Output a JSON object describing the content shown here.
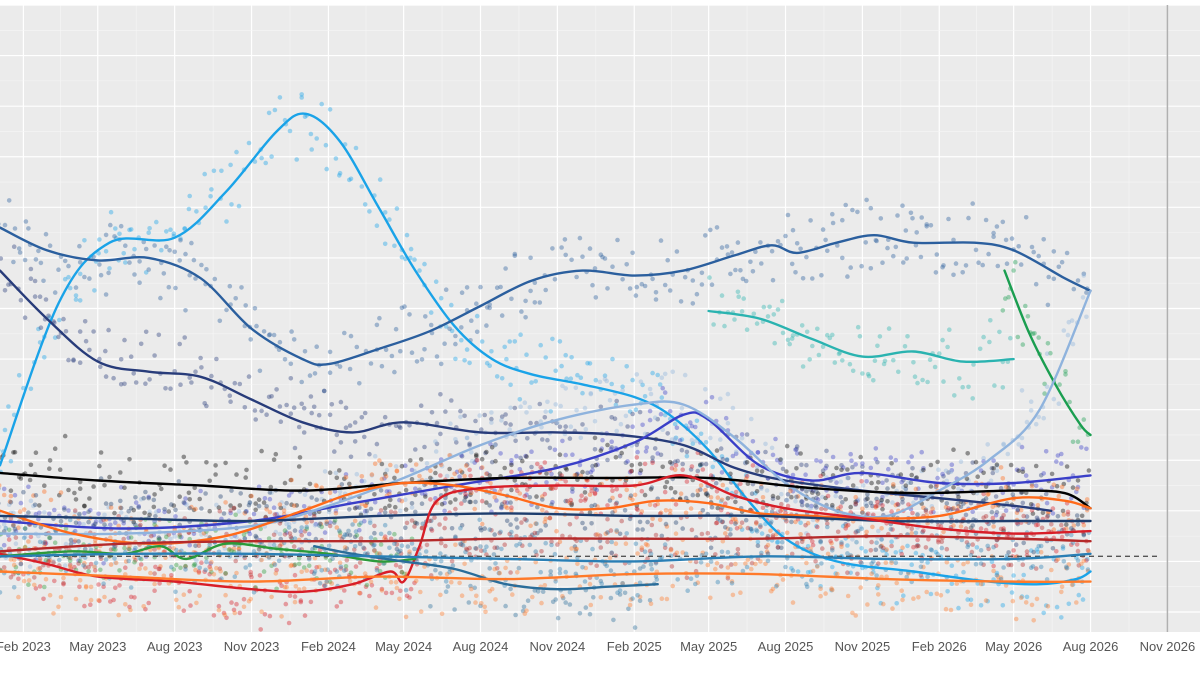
{
  "chart_data": {
    "type": "scatter",
    "x_axis": {
      "type": "date",
      "range": [
        "2023-01-04",
        "2026-12-10"
      ],
      "ticks": [
        {
          "date": "2023-02-01",
          "label": "Feb 2023"
        },
        {
          "date": "2023-05-01",
          "label": "May 2023"
        },
        {
          "date": "2023-08-01",
          "label": "Aug 2023"
        },
        {
          "date": "2023-11-01",
          "label": "Nov 2023"
        },
        {
          "date": "2024-02-01",
          "label": "Feb 2024"
        },
        {
          "date": "2024-05-01",
          "label": "May 2024"
        },
        {
          "date": "2024-08-01",
          "label": "Aug 2024"
        },
        {
          "date": "2024-11-01",
          "label": "Nov 2024"
        },
        {
          "date": "2025-02-01",
          "label": "Feb 2025"
        },
        {
          "date": "2025-05-01",
          "label": "May 2025"
        },
        {
          "date": "2025-08-01",
          "label": "Aug 2025"
        },
        {
          "date": "2025-11-01",
          "label": "Nov 2025"
        },
        {
          "date": "2026-02-01",
          "label": "Feb 2026"
        },
        {
          "date": "2026-05-01",
          "label": "May 2026"
        },
        {
          "date": "2026-08-01",
          "label": "Aug 2026"
        },
        {
          "date": "2026-11-01",
          "label": "Nov 2026"
        }
      ]
    },
    "y_axis": {
      "range": [
        0,
        24
      ],
      "tick_labels_shown": false
    },
    "reference_line": {
      "y": 2.2,
      "style": "dashed",
      "color": "#555555"
    },
    "vertical_line": {
      "date": "2026-11-01",
      "color": "#b0b0b0"
    },
    "grid": true,
    "background": "#ebebeb",
    "series": [
      {
        "color": "#1aa3e8",
        "points": [
          [
            "2023-01-04",
            5.8
          ],
          [
            "2023-03-15",
            12.2
          ],
          [
            "2023-05-15",
            14.6
          ],
          [
            "2023-08-01",
            14.8
          ],
          [
            "2023-10-01",
            16.6
          ],
          [
            "2023-12-01",
            19.0
          ],
          [
            "2024-01-05",
            19.7
          ],
          [
            "2024-02-15",
            18.6
          ],
          [
            "2024-04-01",
            16.0
          ],
          [
            "2024-05-15",
            13.5
          ],
          [
            "2024-07-01",
            11.3
          ],
          [
            "2024-08-15",
            10.0
          ],
          [
            "2024-10-01",
            9.4
          ],
          [
            "2024-12-01",
            9.0
          ],
          [
            "2025-02-01",
            8.5
          ],
          [
            "2025-03-15",
            7.8
          ],
          [
            "2025-05-01",
            6.4
          ],
          [
            "2025-06-15",
            4.5
          ],
          [
            "2025-08-01",
            2.9
          ],
          [
            "2025-10-01",
            2.0
          ],
          [
            "2026-01-01",
            1.6
          ],
          [
            "2026-04-01",
            1.2
          ],
          [
            "2026-06-01",
            1.1
          ],
          [
            "2026-07-15",
            1.3
          ],
          [
            "2026-08-01",
            1.6
          ]
        ]
      },
      {
        "color": "#2b5f9e",
        "points": [
          [
            "2023-01-04",
            15.2
          ],
          [
            "2023-03-01",
            14.3
          ],
          [
            "2023-05-01",
            13.9
          ],
          [
            "2023-07-01",
            14.0
          ],
          [
            "2023-09-01",
            13.2
          ],
          [
            "2023-11-01",
            11.2
          ],
          [
            "2024-01-01",
            10.0
          ],
          [
            "2024-02-01",
            9.8
          ],
          [
            "2024-04-01",
            10.4
          ],
          [
            "2024-06-01",
            11.1
          ],
          [
            "2024-08-01",
            12.1
          ],
          [
            "2024-10-01",
            13.1
          ],
          [
            "2024-12-01",
            13.5
          ],
          [
            "2025-02-01",
            13.3
          ],
          [
            "2025-04-01",
            13.5
          ],
          [
            "2025-06-01",
            14.1
          ],
          [
            "2025-07-15",
            14.5
          ],
          [
            "2025-08-15",
            14.2
          ],
          [
            "2025-10-01",
            14.6
          ],
          [
            "2025-11-15",
            14.9
          ],
          [
            "2026-01-01",
            14.6
          ],
          [
            "2026-03-15",
            14.6
          ],
          [
            "2026-05-01",
            14.3
          ],
          [
            "2026-07-01",
            13.2
          ],
          [
            "2026-08-01",
            12.7
          ]
        ]
      },
      {
        "color": "#283c7a",
        "points": [
          [
            "2023-01-04",
            13.5
          ],
          [
            "2023-03-01",
            11.6
          ],
          [
            "2023-05-01",
            9.9
          ],
          [
            "2023-07-01",
            9.5
          ],
          [
            "2023-09-01",
            9.3
          ],
          [
            "2023-11-01",
            8.4
          ],
          [
            "2024-01-01",
            7.5
          ],
          [
            "2024-03-01",
            7.1
          ],
          [
            "2024-05-01",
            7.5
          ],
          [
            "2024-08-01",
            7.1
          ],
          [
            "2024-11-01",
            7.1
          ],
          [
            "2025-01-15",
            7.0
          ],
          [
            "2025-04-01",
            6.6
          ],
          [
            "2025-06-01",
            5.7
          ],
          [
            "2025-08-01",
            5.2
          ],
          [
            "2025-11-01",
            4.8
          ],
          [
            "2026-02-01",
            4.5
          ],
          [
            "2026-05-01",
            4.2
          ],
          [
            "2026-06-15",
            4.0
          ]
        ]
      },
      {
        "color": "#2ab3b0",
        "points": [
          [
            "2025-05-01",
            11.9
          ],
          [
            "2025-07-01",
            11.6
          ],
          [
            "2025-09-01",
            10.8
          ],
          [
            "2025-11-01",
            10.1
          ],
          [
            "2026-01-01",
            10.3
          ],
          [
            "2026-03-01",
            9.9
          ],
          [
            "2026-05-01",
            10.0
          ]
        ]
      },
      {
        "color": "#1a9e50",
        "points": [
          [
            "2026-04-20",
            13.5
          ],
          [
            "2026-05-20",
            11.0
          ],
          [
            "2026-06-20",
            9.0
          ],
          [
            "2026-07-20",
            7.4
          ],
          [
            "2026-08-01",
            7.0
          ]
        ]
      },
      {
        "color": "#3a3fc8",
        "points": [
          [
            "2023-01-04",
            3.6
          ],
          [
            "2023-06-01",
            3.3
          ],
          [
            "2023-11-01",
            3.6
          ],
          [
            "2024-03-01",
            4.3
          ],
          [
            "2024-07-01",
            5.0
          ],
          [
            "2024-11-01",
            5.7
          ],
          [
            "2025-02-01",
            6.7
          ],
          [
            "2025-04-01",
            7.8
          ],
          [
            "2025-05-01",
            7.6
          ],
          [
            "2025-07-01",
            5.8
          ],
          [
            "2025-09-01",
            5.2
          ],
          [
            "2025-11-01",
            5.5
          ],
          [
            "2026-02-01",
            5.1
          ],
          [
            "2026-05-01",
            5.1
          ],
          [
            "2026-08-01",
            5.4
          ]
        ]
      },
      {
        "color": "#8fb3dd",
        "points": [
          [
            "2023-01-04",
            3.1
          ],
          [
            "2023-06-01",
            3.1
          ],
          [
            "2023-11-01",
            3.4
          ],
          [
            "2024-02-01",
            4.2
          ],
          [
            "2024-05-01",
            5.3
          ],
          [
            "2024-08-01",
            6.6
          ],
          [
            "2024-11-01",
            7.6
          ],
          [
            "2025-02-01",
            8.2
          ],
          [
            "2025-04-01",
            8.2
          ],
          [
            "2025-06-01",
            6.9
          ],
          [
            "2025-08-01",
            5.1
          ],
          [
            "2025-10-01",
            4.0
          ],
          [
            "2025-12-01",
            3.8
          ],
          [
            "2026-02-01",
            4.8
          ],
          [
            "2026-04-01",
            6.0
          ],
          [
            "2026-06-01",
            8.0
          ],
          [
            "2026-08-01",
            12.7
          ]
        ]
      },
      {
        "color": "#000000",
        "points": [
          [
            "2023-01-04",
            5.5
          ],
          [
            "2023-05-01",
            5.2
          ],
          [
            "2023-09-01",
            5.0
          ],
          [
            "2024-01-01",
            4.8
          ],
          [
            "2024-05-01",
            5.1
          ],
          [
            "2024-09-01",
            5.3
          ],
          [
            "2025-01-01",
            5.3
          ],
          [
            "2025-05-01",
            5.3
          ],
          [
            "2025-09-01",
            4.9
          ],
          [
            "2026-01-01",
            4.7
          ],
          [
            "2026-05-01",
            4.8
          ],
          [
            "2026-07-01",
            4.7
          ],
          [
            "2026-08-01",
            4.1
          ]
        ]
      },
      {
        "color": "#ff6a1a",
        "points": [
          [
            "2023-01-04",
            4.0
          ],
          [
            "2023-04-01",
            3.1
          ],
          [
            "2023-07-01",
            2.7
          ],
          [
            "2023-10-01",
            3.0
          ],
          [
            "2024-01-01",
            4.0
          ],
          [
            "2024-03-01",
            4.7
          ],
          [
            "2024-05-01",
            5.1
          ],
          [
            "2024-07-01",
            5.0
          ],
          [
            "2024-09-01",
            4.6
          ],
          [
            "2024-11-01",
            4.1
          ],
          [
            "2025-01-01",
            4.1
          ],
          [
            "2025-03-01",
            4.4
          ],
          [
            "2025-05-01",
            4.3
          ],
          [
            "2025-07-01",
            3.9
          ],
          [
            "2025-09-01",
            3.8
          ],
          [
            "2025-11-01",
            3.7
          ],
          [
            "2026-02-01",
            3.8
          ],
          [
            "2026-05-01",
            4.5
          ],
          [
            "2026-07-01",
            4.4
          ],
          [
            "2026-08-01",
            4.1
          ]
        ]
      },
      {
        "color": "#1e3e6e",
        "points": [
          [
            "2023-01-04",
            3.8
          ],
          [
            "2023-06-01",
            3.7
          ],
          [
            "2023-11-01",
            3.6
          ],
          [
            "2024-04-01",
            3.8
          ],
          [
            "2024-09-01",
            3.9
          ],
          [
            "2025-02-01",
            3.8
          ],
          [
            "2025-07-01",
            3.8
          ],
          [
            "2025-12-01",
            3.6
          ],
          [
            "2026-05-01",
            3.6
          ],
          [
            "2026-08-01",
            3.6
          ]
        ]
      },
      {
        "color": "#d81e28",
        "points": [
          [
            "2023-01-04",
            2.3
          ],
          [
            "2023-03-01",
            1.9
          ],
          [
            "2023-05-01",
            1.4
          ],
          [
            "2023-08-01",
            1.2
          ],
          [
            "2023-11-01",
            0.9
          ],
          [
            "2024-01-01",
            0.8
          ],
          [
            "2024-03-01",
            1.1
          ],
          [
            "2024-04-15",
            1.6
          ],
          [
            "2024-05-01",
            1.2
          ],
          [
            "2024-05-20",
            2.6
          ],
          [
            "2024-06-10",
            4.4
          ],
          [
            "2024-08-01",
            4.9
          ],
          [
            "2024-11-01",
            5.0
          ],
          [
            "2025-02-01",
            5.0
          ],
          [
            "2025-04-01",
            5.4
          ],
          [
            "2025-06-01",
            4.6
          ],
          [
            "2025-08-01",
            4.1
          ],
          [
            "2025-11-01",
            3.7
          ],
          [
            "2026-02-01",
            3.3
          ],
          [
            "2026-05-01",
            3.1
          ],
          [
            "2026-08-01",
            3.2
          ]
        ]
      },
      {
        "color": "#b52a2a",
        "points": [
          [
            "2023-01-04",
            2.4
          ],
          [
            "2023-06-01",
            2.7
          ],
          [
            "2023-11-01",
            2.8
          ],
          [
            "2024-04-01",
            2.8
          ],
          [
            "2024-09-01",
            2.9
          ],
          [
            "2025-02-01",
            2.9
          ],
          [
            "2025-07-01",
            2.9
          ],
          [
            "2025-12-01",
            3.0
          ],
          [
            "2026-05-01",
            2.9
          ],
          [
            "2026-08-01",
            2.8
          ]
        ]
      },
      {
        "color": "#2b9a3a",
        "points": [
          [
            "2023-01-04",
            2.2
          ],
          [
            "2023-04-01",
            2.4
          ],
          [
            "2023-06-01",
            2.3
          ],
          [
            "2023-07-15",
            2.6
          ],
          [
            "2023-08-15",
            2.1
          ],
          [
            "2023-10-01",
            2.7
          ],
          [
            "2023-12-01",
            2.5
          ],
          [
            "2024-02-01",
            2.3
          ],
          [
            "2024-04-01",
            2.0
          ],
          [
            "2024-05-15",
            2.1
          ]
        ]
      },
      {
        "color": "#2a6d9a",
        "points": [
          [
            "2024-01-15",
            2.6
          ],
          [
            "2024-03-01",
            2.3
          ],
          [
            "2024-05-01",
            2.0
          ],
          [
            "2024-07-01",
            1.7
          ],
          [
            "2024-09-01",
            1.1
          ],
          [
            "2024-11-01",
            0.9
          ],
          [
            "2025-01-01",
            1.0
          ],
          [
            "2025-03-01",
            1.1
          ]
        ]
      },
      {
        "color": "#ff7a2a",
        "points": [
          [
            "2023-01-04",
            1.6
          ],
          [
            "2023-06-01",
            1.4
          ],
          [
            "2023-11-01",
            1.2
          ],
          [
            "2024-04-01",
            1.4
          ],
          [
            "2024-09-01",
            1.3
          ],
          [
            "2025-02-01",
            1.5
          ],
          [
            "2025-07-01",
            1.5
          ],
          [
            "2025-12-01",
            1.3
          ],
          [
            "2026-05-01",
            1.2
          ],
          [
            "2026-08-01",
            1.2
          ]
        ]
      },
      {
        "color": "#2a7fb5",
        "points": [
          [
            "2023-01-04",
            2.2
          ],
          [
            "2023-06-01",
            2.3
          ],
          [
            "2023-11-01",
            2.3
          ],
          [
            "2024-04-01",
            2.2
          ],
          [
            "2024-09-01",
            2.1
          ],
          [
            "2025-02-01",
            2.0
          ],
          [
            "2025-07-01",
            2.2
          ],
          [
            "2025-12-01",
            2.1
          ],
          [
            "2026-05-01",
            2.1
          ],
          [
            "2026-08-01",
            2.3
          ]
        ]
      }
    ]
  }
}
